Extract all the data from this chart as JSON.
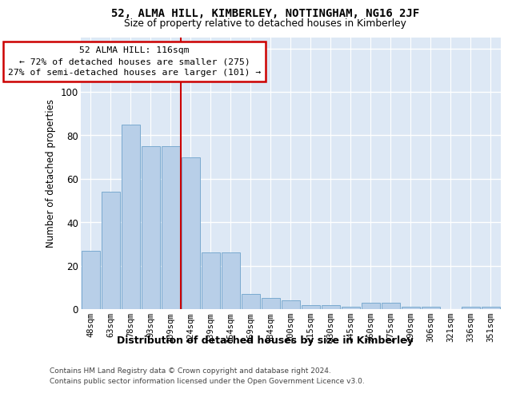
{
  "title": "52, ALMA HILL, KIMBERLEY, NOTTINGHAM, NG16 2JF",
  "subtitle": "Size of property relative to detached houses in Kimberley",
  "xlabel": "Distribution of detached houses by size in Kimberley",
  "ylabel": "Number of detached properties",
  "categories": [
    "48sqm",
    "63sqm",
    "78sqm",
    "93sqm",
    "109sqm",
    "124sqm",
    "139sqm",
    "154sqm",
    "169sqm",
    "184sqm",
    "200sqm",
    "215sqm",
    "230sqm",
    "245sqm",
    "260sqm",
    "275sqm",
    "290sqm",
    "306sqm",
    "321sqm",
    "336sqm",
    "351sqm"
  ],
  "values": [
    27,
    54,
    85,
    75,
    75,
    70,
    26,
    26,
    7,
    5,
    4,
    2,
    2,
    1,
    3,
    3,
    1,
    1,
    0,
    1,
    1
  ],
  "bar_color": "#b8cfe8",
  "bar_edge_color": "#7aaad0",
  "vline_index": 5,
  "annotation_text": "52 ALMA HILL: 116sqm\n← 72% of detached houses are smaller (275)\n27% of semi-detached houses are larger (101) →",
  "annotation_box_facecolor": "#ffffff",
  "annotation_box_edgecolor": "#cc0000",
  "ylim": [
    0,
    125
  ],
  "yticks": [
    0,
    20,
    40,
    60,
    80,
    100,
    120
  ],
  "bg_color": "#dde8f5",
  "footer_line1": "Contains HM Land Registry data © Crown copyright and database right 2024.",
  "footer_line2": "Contains public sector information licensed under the Open Government Licence v3.0."
}
